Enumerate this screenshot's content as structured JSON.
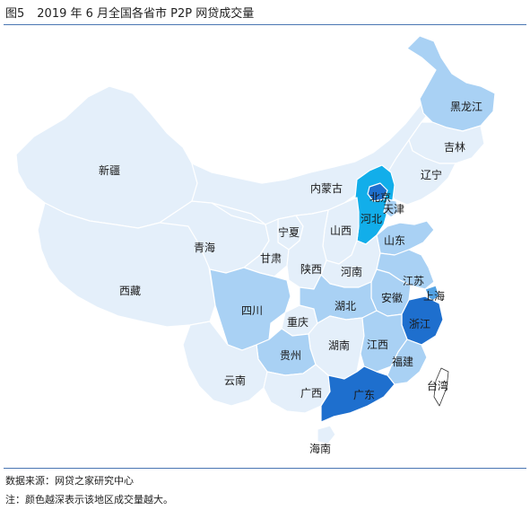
{
  "header": {
    "figure": "图5",
    "title": "2019 年 6 月全国各省市 P2P 网贷成交量"
  },
  "colors": {
    "level1": "#e4effa",
    "level2": "#a9d1f4",
    "level3": "#53a2e3",
    "level4": "#1e6fce",
    "level5": "#12aeea",
    "border": "#ffffff",
    "rule": "#4a76b3"
  },
  "map": {
    "provinces": [
      {
        "name": "新疆",
        "level": 1
      },
      {
        "name": "西藏",
        "level": 1
      },
      {
        "name": "青海",
        "level": 1
      },
      {
        "name": "内蒙古",
        "level": 1
      },
      {
        "name": "黑龙江",
        "level": 2
      },
      {
        "name": "吉林",
        "level": 1
      },
      {
        "name": "辽宁",
        "level": 1
      },
      {
        "name": "北京",
        "level": 4
      },
      {
        "name": "天津",
        "level": 2
      },
      {
        "name": "河北",
        "level": 5
      },
      {
        "name": "山西",
        "level": 1
      },
      {
        "name": "宁夏",
        "level": 1
      },
      {
        "name": "甘肃",
        "level": 1
      },
      {
        "name": "陕西",
        "level": 1
      },
      {
        "name": "山东",
        "level": 2
      },
      {
        "name": "河南",
        "level": 1
      },
      {
        "name": "江苏",
        "level": 2
      },
      {
        "name": "上海",
        "level": 3
      },
      {
        "name": "安徽",
        "level": 2
      },
      {
        "name": "四川",
        "level": 2
      },
      {
        "name": "重庆",
        "level": 1
      },
      {
        "name": "湖北",
        "level": 2
      },
      {
        "name": "浙江",
        "level": 4
      },
      {
        "name": "湖南",
        "level": 1
      },
      {
        "name": "江西",
        "level": 2
      },
      {
        "name": "贵州",
        "level": 2
      },
      {
        "name": "福建",
        "level": 2
      },
      {
        "name": "云南",
        "level": 1
      },
      {
        "name": "广西",
        "level": 1
      },
      {
        "name": "广东",
        "level": 4
      },
      {
        "name": "台湾",
        "level": 0
      },
      {
        "name": "海南",
        "level": 1
      }
    ]
  },
  "footer": {
    "source": "数据来源：网贷之家研究中心",
    "note": "注：颜色越深表示该地区成交量越大。"
  }
}
